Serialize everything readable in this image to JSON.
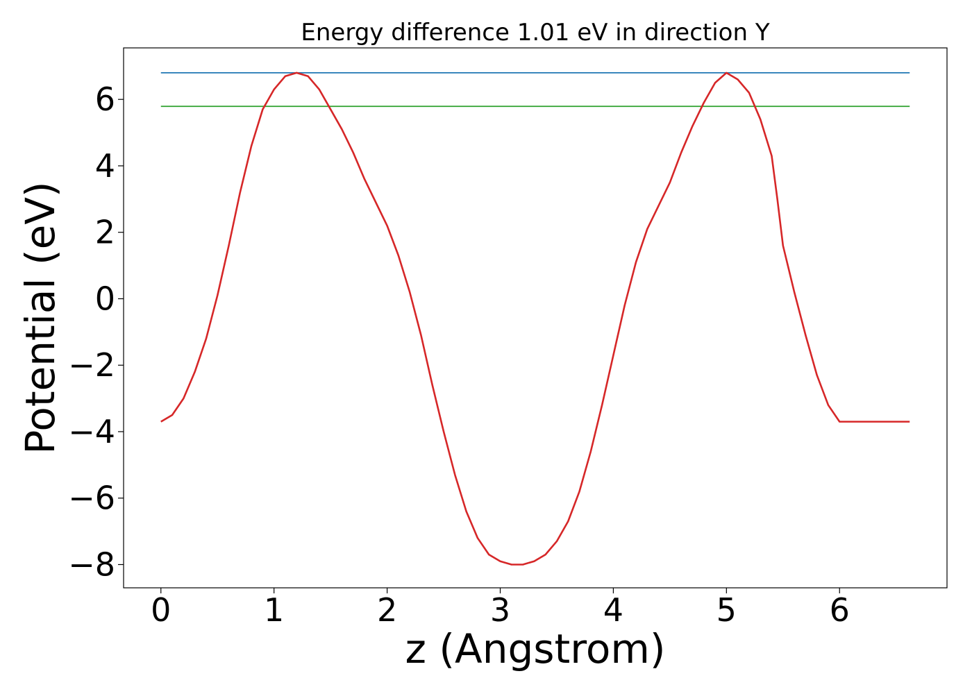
{
  "chart_data": {
    "type": "line",
    "title": "Energy difference 1.01 eV in direction Y",
    "xlabel": "z (Angstrom)",
    "ylabel": "Potential (eV)",
    "xlim": [
      -0.33,
      6.95
    ],
    "ylim": [
      -8.7,
      7.55
    ],
    "xticks": [
      0,
      1,
      2,
      3,
      4,
      5,
      6
    ],
    "yticks": [
      -8,
      -6,
      -4,
      -2,
      0,
      2,
      4,
      6
    ],
    "xtick_labels": [
      "0",
      "1",
      "2",
      "3",
      "4",
      "5",
      "6"
    ],
    "ytick_labels": [
      "−8",
      "−6",
      "−4",
      "−2",
      "0",
      "2",
      "4",
      "6"
    ],
    "grid": false,
    "series": [
      {
        "color": "#1f77b4",
        "x": [
          0,
          6.62
        ],
        "y": [
          6.8,
          6.8
        ]
      },
      {
        "color": "#2ca02c",
        "x": [
          0,
          6.62
        ],
        "y": [
          5.79,
          5.79
        ]
      },
      {
        "color": "#d62728",
        "x": [
          0,
          0.1,
          0.2,
          0.3,
          0.4,
          0.5,
          0.6,
          0.7,
          0.8,
          0.9,
          1.0,
          1.1,
          1.2,
          1.3,
          1.4,
          1.5,
          1.6,
          1.7,
          1.8,
          1.9,
          2.0,
          2.1,
          2.2,
          2.3,
          2.4,
          2.5,
          2.6,
          2.7,
          2.8,
          2.9,
          3.0,
          3.1,
          3.2,
          3.3,
          3.4,
          3.5,
          3.6,
          3.7,
          3.8,
          3.9,
          4.0,
          4.1,
          4.2,
          4.3,
          4.4,
          4.5,
          4.6,
          4.7,
          4.8,
          4.9,
          5.0,
          5.1,
          5.2,
          5.3,
          5.4,
          5.45,
          5.5,
          5.6,
          5.7,
          5.8,
          5.9,
          6.0,
          6.1,
          6.2,
          6.3,
          6.4,
          6.5,
          6.62
        ],
        "y": [
          -3.7,
          -3.5,
          -3.0,
          -2.2,
          -1.2,
          0.1,
          1.6,
          3.2,
          4.6,
          5.7,
          6.3,
          6.7,
          6.8,
          6.7,
          6.3,
          5.7,
          5.1,
          4.4,
          3.6,
          2.9,
          2.2,
          1.3,
          0.2,
          -1.1,
          -2.6,
          -4.0,
          -5.3,
          -6.4,
          -7.2,
          -7.7,
          -7.9,
          -8.0,
          -8.0,
          -7.9,
          -7.7,
          -7.3,
          -6.7,
          -5.8,
          -4.6,
          -3.2,
          -1.7,
          -0.2,
          1.1,
          2.1,
          2.8,
          3.5,
          4.4,
          5.2,
          5.9,
          6.5,
          6.8,
          6.6,
          6.2,
          5.4,
          4.3,
          3.0,
          1.6,
          0.2,
          -1.1,
          -2.3,
          -3.2,
          -3.7,
          -3.7,
          -3.7,
          -3.7,
          -3.7,
          -3.7,
          -3.7
        ]
      }
    ]
  }
}
